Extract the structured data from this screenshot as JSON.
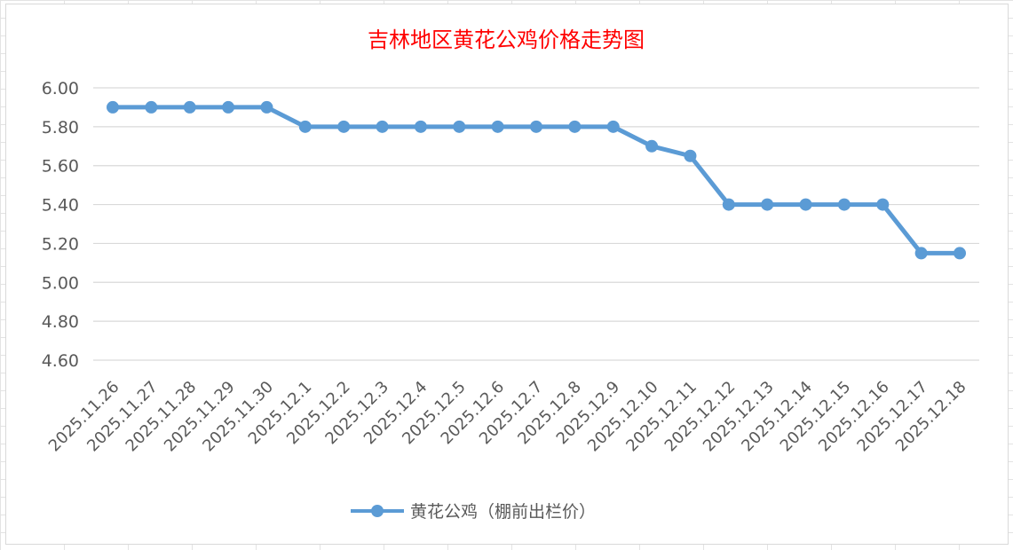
{
  "chart_data": {
    "type": "line",
    "title": "吉林地区黄花公鸡价格走势图",
    "xlabel": "",
    "ylabel": "",
    "categories": [
      "2025.11.26",
      "2025.11.27",
      "2025.11.28",
      "2025.11.29",
      "2025.11.30",
      "2025.12.1",
      "2025.12.2",
      "2025.12.3",
      "2025.12.4",
      "2025.12.5",
      "2025.12.6",
      "2025.12.7",
      "2025.12.8",
      "2025.12.9",
      "2025.12.10",
      "2025.12.11",
      "2025.12.12",
      "2025.12.13",
      "2025.12.14",
      "2025.12.15",
      "2025.12.16",
      "2025.12.17",
      "2025.12.18"
    ],
    "series": [
      {
        "name": "黄花公鸡（棚前出栏价）",
        "color": "#5b9bd5",
        "values": [
          5.9,
          5.9,
          5.9,
          5.9,
          5.9,
          5.8,
          5.8,
          5.8,
          5.8,
          5.8,
          5.8,
          5.8,
          5.8,
          5.8,
          5.7,
          5.65,
          5.4,
          5.4,
          5.4,
          5.4,
          5.4,
          5.15,
          5.15
        ]
      }
    ],
    "ylim": [
      4.6,
      6.0
    ],
    "yticks": [
      "6.00",
      "5.80",
      "5.60",
      "5.40",
      "5.20",
      "5.00",
      "4.80",
      "4.60"
    ],
    "grid": true,
    "legend_position": "bottom"
  }
}
